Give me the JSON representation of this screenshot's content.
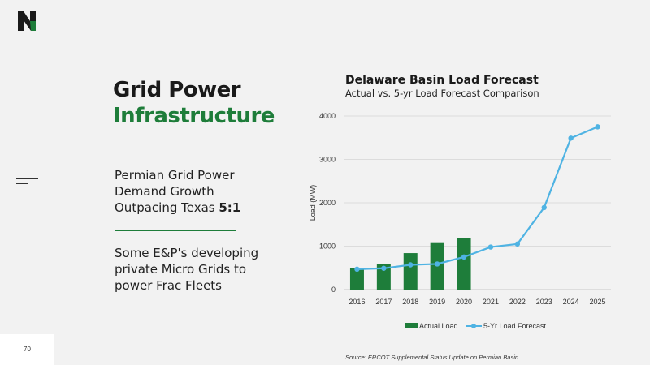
{
  "slide": {
    "title_line1": "Grid Power",
    "title_line2": "Infrastructure",
    "bullet1_text": "Permian Grid Power Demand Growth Outpacing Texas",
    "bullet1_emphasis": "5:1",
    "bullet2_text": "Some E&P's developing private Micro Grids to power Frac Fleets",
    "page_number": "70",
    "source": "Source: ERCOT Supplemental Status Update on Permian Basin",
    "colors": {
      "brand_green": "#1e7d3a",
      "line_blue": "#4fb3e3",
      "text_dark": "#1a1a1a"
    }
  },
  "chart_data": {
    "type": "bar",
    "title": "Delaware Basin Load Forecast",
    "subtitle": "Actual vs. 5-yr Load Forecast Comparison",
    "ylabel": "Load (MW)",
    "xlabel": "",
    "ylim": [
      0,
      4000
    ],
    "yticks": [
      0,
      1000,
      2000,
      3000,
      4000
    ],
    "categories": [
      "2016",
      "2017",
      "2018",
      "2019",
      "2020",
      "2021",
      "2022",
      "2023",
      "2024",
      "2025"
    ],
    "grid": true,
    "legend_position": "bottom",
    "series": [
      {
        "name": "Actual Load",
        "type": "bar",
        "color": "#1e7d3a",
        "values": [
          490,
          590,
          840,
          1090,
          1190,
          null,
          null,
          null,
          null,
          null
        ]
      },
      {
        "name": "5-Yr Load Forecast",
        "type": "line",
        "color": "#4fb3e3",
        "values": [
          470,
          490,
          570,
          590,
          750,
          980,
          1050,
          1890,
          3490,
          3750
        ]
      }
    ]
  }
}
